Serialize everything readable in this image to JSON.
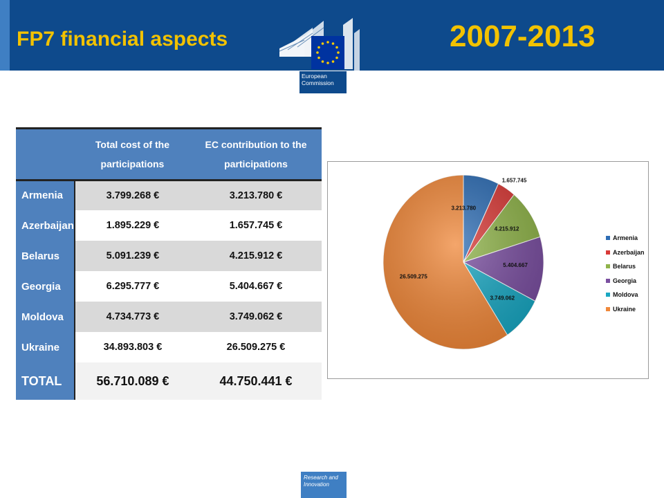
{
  "header": {
    "title": "FP7 financial aspects",
    "years": "2007-2013",
    "logo_text_line1": "European",
    "logo_text_line2": "Commission"
  },
  "table": {
    "headers": [
      "",
      "Total cost of the participations",
      "EC contribution to the participations"
    ],
    "rows": [
      {
        "country": "Armenia",
        "total_cost": "3.799.268 €",
        "ec_contribution": "3.213.780 €"
      },
      {
        "country": "Azerbaijan",
        "total_cost": "1.895.229 €",
        "ec_contribution": "1.657.745 €"
      },
      {
        "country": "Belarus",
        "total_cost": "5.091.239 €",
        "ec_contribution": "4.215.912 €"
      },
      {
        "country": "Georgia",
        "total_cost": "6.295.777 €",
        "ec_contribution": "5.404.667 €"
      },
      {
        "country": "Moldova",
        "total_cost": "4.734.773 €",
        "ec_contribution": "3.749.062 €"
      },
      {
        "country": "Ukraine",
        "total_cost": "34.893.803 €",
        "ec_contribution": "26.509.275 €"
      }
    ],
    "total": {
      "country": "TOTAL",
      "total_cost": "56.710.089 €",
      "ec_contribution": "44.750.441 €"
    }
  },
  "chart_data": {
    "type": "pie",
    "title": "",
    "legend_position": "right",
    "categories": [
      "Armenia",
      "Azerbaijan",
      "Belarus",
      "Georgia",
      "Moldova",
      "Ukraine"
    ],
    "values": [
      3213780,
      1657745,
      4215912,
      5404667,
      3749062,
      26509275
    ],
    "data_labels": [
      "3.213.780",
      "1.657.745",
      "4.215.912",
      "5.404.667",
      "3.749.062",
      "26.509.275"
    ],
    "colors": [
      "#2e6db4",
      "#d83a37",
      "#8fb34a",
      "#7a4fa0",
      "#1aa7c2",
      "#f0883a"
    ]
  },
  "footer": {
    "badge_line1": "Research and",
    "badge_line2": "Innovation"
  }
}
